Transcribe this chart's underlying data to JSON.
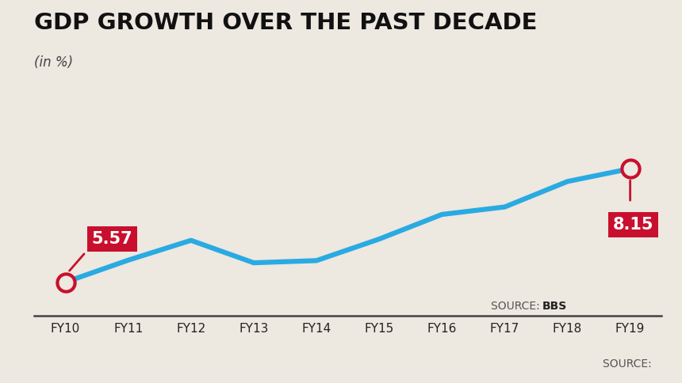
{
  "title": "GDP GROWTH OVER THE PAST DECADE",
  "subtitle": "(in %)",
  "background_color": "#ede8e0",
  "line_color": "#29aae2",
  "line_width": 4.5,
  "categories": [
    "FY10",
    "FY11",
    "FY12",
    "FY13",
    "FY14",
    "FY15",
    "FY16",
    "FY17",
    "FY18",
    "FY19"
  ],
  "values": [
    5.57,
    6.07,
    6.52,
    6.01,
    6.06,
    6.55,
    7.11,
    7.28,
    7.86,
    8.15
  ],
  "first_label": "5.57",
  "last_label": "8.15",
  "annotation_color": "#c8102e",
  "title_fontsize": 21,
  "subtitle_fontsize": 12,
  "tick_fontsize": 11,
  "ylim_min": 4.8,
  "ylim_max": 9.2
}
